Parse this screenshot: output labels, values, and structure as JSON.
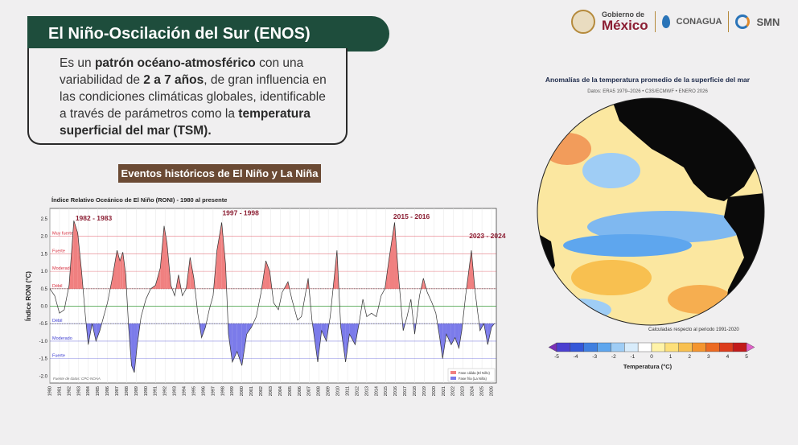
{
  "header": {
    "title": "El Niño-Oscilación del Sur (ENOS)"
  },
  "description": {
    "t1": "Es un ",
    "b1": "patrón océano-atmosférico",
    "t2": " con una variabilidad de ",
    "b2": "2 a 7 años",
    "t3": ", de gran influencia en las condiciones climáticas globales, identificable a través de parámetros como la ",
    "b3": "temperatura superficial del mar (TSM)."
  },
  "events_label": "Eventos históricos de El Niño y La Niña",
  "logos": {
    "gob_line1": "Gobierno de",
    "gob_line2": "México",
    "conagua": "CONAGUA",
    "smn": "SMN"
  },
  "map": {
    "title": "Anomalías de la temperatura promedio de la superficie del mar",
    "subtitle": "Datos: ERA5 1979–2026 • C3S/ECMWF • ENERO 2026",
    "note": "Calculadas respecto al periodo 1991-2020",
    "colorbar_label": "Temperatura (°C)",
    "colorbar_ticks": [
      "-5",
      "-4",
      "-3",
      "-2",
      "-1",
      "0",
      "1",
      "2",
      "3",
      "4",
      "5"
    ],
    "colorbar_colors": [
      "#7a2fb5",
      "#4b3fd0",
      "#3457d8",
      "#3f7fe0",
      "#5ea6ee",
      "#9fcdf5",
      "#d8ecfb",
      "#ffffff",
      "#fff3a8",
      "#fde07a",
      "#f8c050",
      "#f4952e",
      "#ec6a22",
      "#dc3c1c",
      "#c21a1a",
      "#e060c8"
    ],
    "colors": {
      "warm": "#f8c050",
      "cool": "#5ea6ee",
      "land": "#0a0a0a",
      "ocean": "#fbe7a0"
    }
  },
  "chart_data": {
    "type": "area",
    "title": "Índice Relativo Oceánico de El Niño (RONI) - 1980 al presente",
    "ylabel": "Índice RONI (°C)",
    "xlabel": "",
    "ylim": [
      -2.2,
      2.8
    ],
    "xlim": [
      1980,
      2026.5
    ],
    "grid": true,
    "legend_position": "bottom-right",
    "source": "Fuente de datos: CPC-NOAA",
    "y_ticks": [
      "2.5",
      "2.0",
      "1.5",
      "1.0",
      "0.5",
      "0.0",
      "-0.5",
      "-1.0",
      "-1.5",
      "-2.0"
    ],
    "x_ticks": [
      "1980",
      "1981",
      "1982",
      "1983",
      "1984",
      "1985",
      "1986",
      "1987",
      "1988",
      "1989",
      "1990",
      "1991",
      "1992",
      "1993",
      "1994",
      "1995",
      "1996",
      "1997",
      "1998",
      "1999",
      "2000",
      "2001",
      "2002",
      "2003",
      "2004",
      "2005",
      "2006",
      "2007",
      "2008",
      "2009",
      "2010",
      "2011",
      "2012",
      "2013",
      "2014",
      "2015",
      "2016",
      "2017",
      "2018",
      "2019",
      "2020",
      "2021",
      "2022",
      "2023",
      "2024",
      "2025",
      "2026"
    ],
    "intensity_bands": [
      {
        "label": "Muy fuerte",
        "y": 2.0,
        "color": "#d62a3a"
      },
      {
        "label": "Fuerte",
        "y": 1.5,
        "color": "#d62a3a"
      },
      {
        "label": "Moderado",
        "y": 1.0,
        "color": "#d62a3a"
      },
      {
        "label": "Débil",
        "y": 0.5,
        "color": "#d62a3a"
      },
      {
        "label": "Débil",
        "y": -0.5,
        "color": "#3a3ad0"
      },
      {
        "label": "Moderado",
        "y": -1.0,
        "color": "#3a3ad0"
      },
      {
        "label": "Fuerte",
        "y": -1.5,
        "color": "#3a3ad0"
      }
    ],
    "annotations": [
      {
        "text": "1982 - 1983",
        "x": 1982.5,
        "y": 2.45
      },
      {
        "text": "1997 - 1998",
        "x": 1997.8,
        "y": 2.6
      },
      {
        "text": "2015 - 2016",
        "x": 2015.6,
        "y": 2.5
      },
      {
        "text": "2023 - 2024",
        "x": 2023.5,
        "y": 1.95
      }
    ],
    "series": [
      {
        "name": "Fase cálida (El Niño)",
        "color": "#f08080"
      },
      {
        "name": "Fase fría (La Niña)",
        "color": "#7b7bea"
      }
    ],
    "x": [
      1980.0,
      1980.5,
      1981.0,
      1981.5,
      1982.0,
      1982.5,
      1982.9,
      1983.3,
      1983.7,
      1984.0,
      1984.4,
      1984.8,
      1985.2,
      1985.6,
      1986.0,
      1986.5,
      1987.0,
      1987.3,
      1987.6,
      1987.9,
      1988.2,
      1988.5,
      1988.8,
      1989.1,
      1989.5,
      1990.0,
      1990.5,
      1991.0,
      1991.5,
      1991.9,
      1992.2,
      1992.6,
      1993.0,
      1993.4,
      1993.8,
      1994.2,
      1994.6,
      1995.0,
      1995.4,
      1995.8,
      1996.2,
      1996.6,
      1997.0,
      1997.4,
      1997.9,
      1998.3,
      1998.6,
      1999.0,
      1999.5,
      2000.0,
      2000.5,
      2001.0,
      2001.5,
      2002.0,
      2002.5,
      2002.9,
      2003.3,
      2003.8,
      2004.2,
      2004.8,
      2005.2,
      2005.8,
      2006.2,
      2006.9,
      2007.3,
      2007.9,
      2008.3,
      2008.8,
      2009.2,
      2009.9,
      2010.3,
      2010.8,
      2011.2,
      2011.8,
      2012.2,
      2012.6,
      2013.0,
      2013.5,
      2014.0,
      2014.5,
      2014.9,
      2015.3,
      2015.9,
      2016.3,
      2016.8,
      2017.2,
      2017.6,
      2018.0,
      2018.5,
      2018.9,
      2019.3,
      2019.8,
      2020.2,
      2020.6,
      2020.9,
      2021.3,
      2021.8,
      2022.2,
      2022.6,
      2022.9,
      2023.3,
      2023.9,
      2024.3,
      2024.8,
      2025.2,
      2025.6,
      2026.0,
      2026.3
    ],
    "values": [
      0.5,
      0.3,
      -0.2,
      -0.1,
      0.6,
      2.45,
      2.1,
      1.0,
      -0.3,
      -1.1,
      -0.5,
      -1.0,
      -0.7,
      -0.3,
      0.1,
      0.8,
      1.6,
      1.3,
      1.55,
      0.9,
      -0.6,
      -1.7,
      -1.9,
      -1.1,
      -0.3,
      0.2,
      0.5,
      0.6,
      1.1,
      2.3,
      1.8,
      0.6,
      0.3,
      0.9,
      0.3,
      0.5,
      1.4,
      0.8,
      -0.2,
      -0.9,
      -0.6,
      -0.1,
      0.3,
      1.6,
      2.4,
      1.2,
      -0.8,
      -1.6,
      -1.3,
      -1.7,
      -0.8,
      -0.6,
      -0.3,
      0.4,
      1.3,
      1.0,
      0.1,
      -0.1,
      0.4,
      0.7,
      0.2,
      -0.4,
      -0.3,
      0.8,
      -0.4,
      -1.6,
      -0.7,
      -1.0,
      -0.3,
      1.6,
      -0.6,
      -1.6,
      -0.8,
      -1.1,
      -0.5,
      0.2,
      -0.3,
      -0.2,
      -0.3,
      0.3,
      0.5,
      1.3,
      2.4,
      0.9,
      -0.7,
      -0.3,
      0.2,
      -0.8,
      0.3,
      0.8,
      0.4,
      0.1,
      -0.2,
      -0.9,
      -1.5,
      -0.8,
      -1.1,
      -0.9,
      -1.2,
      -0.7,
      0.3,
      1.6,
      0.4,
      -0.7,
      -0.5,
      -1.1,
      -0.6,
      -0.5
    ]
  }
}
